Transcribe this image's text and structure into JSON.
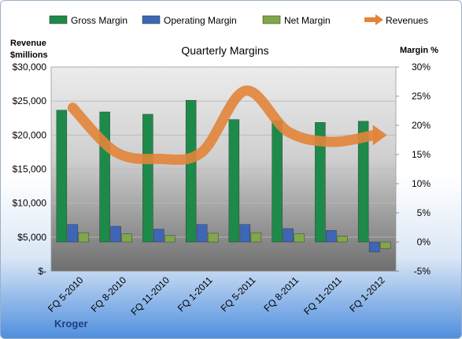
{
  "chart_data": {
    "type": "bar",
    "title": "Quarterly Margins",
    "company": "Kroger",
    "categories": [
      "FQ 5-2010",
      "FQ 8-2010",
      "FQ 11-2010",
      "FQ 1-2011",
      "FQ 5-2011",
      "FQ 8-2011",
      "FQ 11-2011",
      "FQ 1-2012"
    ],
    "ylabel_left": [
      "Revenue",
      "$millions"
    ],
    "ylabel_right": "Margin %",
    "yticks_left": [
      "$30,000",
      "$25,000",
      "$20,000",
      "$15,000",
      "$10,000",
      "$5,000",
      "$-"
    ],
    "yticks_right": [
      "30%",
      "25%",
      "20%",
      "15%",
      "10%",
      "5%",
      "0%",
      "-5%"
    ],
    "ylim_left": [
      0,
      30000
    ],
    "ylim_right": [
      -5,
      30
    ],
    "legend_position": "top",
    "series": [
      {
        "name": "Gross Margin",
        "axis": "right",
        "kind": "bar",
        "color": "#1e8a4a",
        "values": [
          22.6,
          22.3,
          21.9,
          24.3,
          21.0,
          20.8,
          20.5,
          20.7
        ]
      },
      {
        "name": "Operating Margin",
        "axis": "right",
        "kind": "bar",
        "color": "#3e66b6",
        "values": [
          3.0,
          2.7,
          2.2,
          3.0,
          3.0,
          2.3,
          2.0,
          -1.7
        ]
      },
      {
        "name": "Net Margin",
        "axis": "right",
        "kind": "bar",
        "color": "#7fa84a",
        "values": [
          1.6,
          1.4,
          1.1,
          1.5,
          1.6,
          1.4,
          1.0,
          -1.1
        ]
      },
      {
        "name": "Revenues",
        "axis": "left",
        "kind": "line",
        "color": "#e2843a",
        "values": [
          24000,
          17500,
          16500,
          17500,
          26500,
          20500,
          19000,
          20000
        ]
      }
    ]
  }
}
